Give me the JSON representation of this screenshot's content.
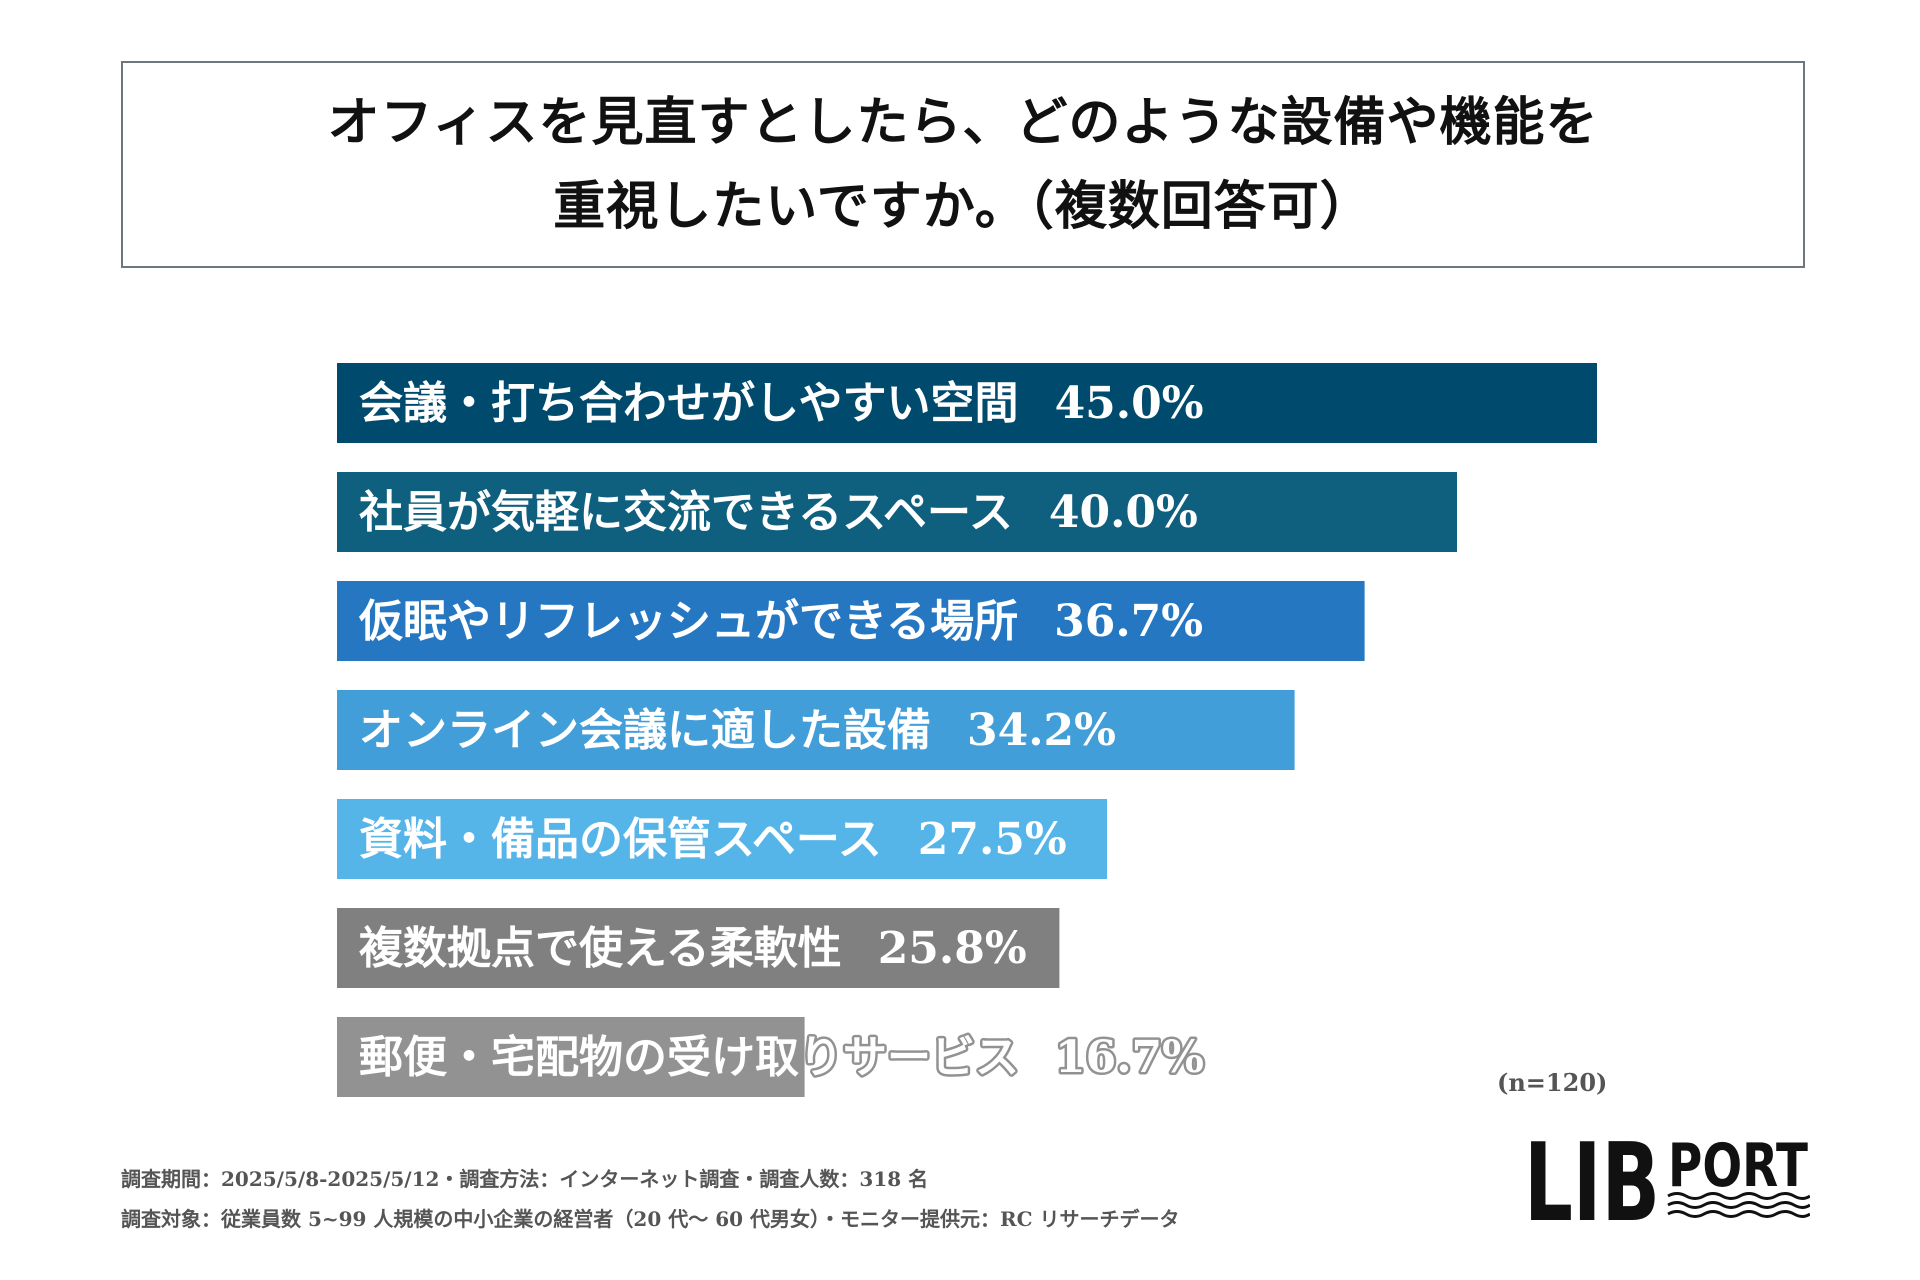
{
  "title": {
    "line1": "オフィスを見直すとしたら、どのような設備や機能を",
    "line2": "重視したいですか。（複数回答可）"
  },
  "chart_data": {
    "type": "bar",
    "orientation": "horizontal",
    "title": "オフィスを見直すとしたら、どのような設備や機能を重視したいですか。（複数回答可）",
    "unit": "%",
    "xlim": [
      0,
      50
    ],
    "categories": [
      "会議・打ち合わせがしやすい空間",
      "社員が気軽に交流できるスペース",
      "仮眠やリフレッシュができる場所",
      "オンライン会議に適した設備",
      "資料・備品の保管スペース",
      "複数拠点で使える柔軟性",
      "郵便・宅配物の受け取りサービス"
    ],
    "values": [
      45.0,
      40.0,
      36.7,
      34.2,
      27.5,
      25.8,
      16.7
    ],
    "value_labels": [
      "45.0%",
      "40.0%",
      "36.7%",
      "34.2%",
      "27.5%",
      "25.8%",
      "16.7%"
    ],
    "colors": [
      "#004a6d",
      "#0f5f7f",
      "#2577c2",
      "#429ed8",
      "#55b4e8",
      "#808080",
      "#929292"
    ]
  },
  "sample_size": "(n=120)",
  "footnotes": {
    "line1": "調査期間：2025/5/8-2025/5/12・調査方法：インターネット調査・調査人数：318 名",
    "line2": "調査対象：従業員数 5~99 人規模の中小企業の経営者（20 代～ 60 代男女）・モニター提供元：RC リサーチデータ"
  },
  "logo": {
    "text_main": "LIB",
    "text_sub": "PORT",
    "color": "#111111"
  }
}
